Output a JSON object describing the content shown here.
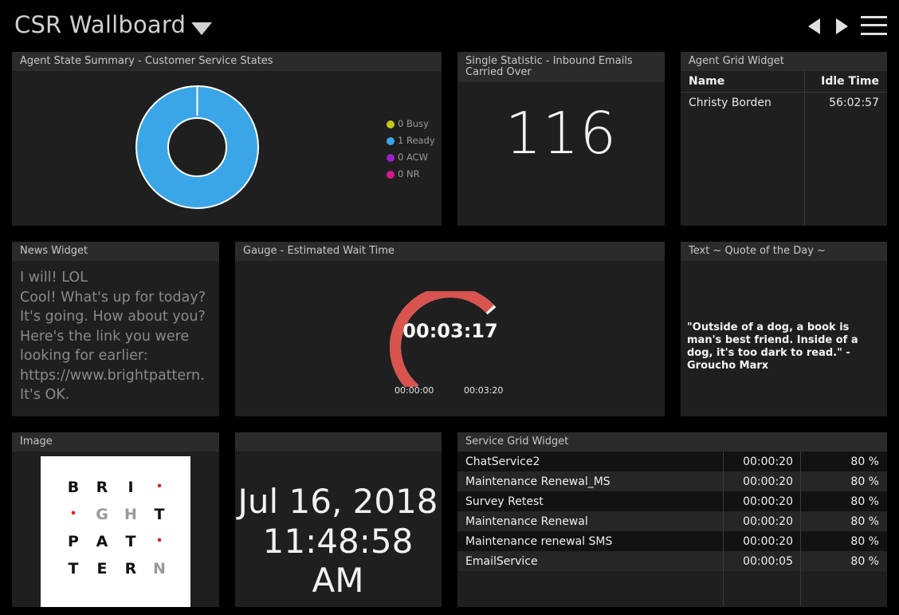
{
  "header": {
    "title": "CSR Wallboard"
  },
  "agent_state": {
    "title": "Agent State Summary - Customer Service States",
    "legend": [
      {
        "label": "0 Busy",
        "color": "#c6c61a"
      },
      {
        "label": "1 Ready",
        "color": "#3aa6e8"
      },
      {
        "label": "0 ACW",
        "color": "#9a1fc9"
      },
      {
        "label": "0 NR",
        "color": "#d6178f"
      }
    ],
    "donut_values": {
      "Busy": 0,
      "Ready": 1,
      "ACW": 0,
      "NR": 0
    }
  },
  "single_stat": {
    "title": "Single Statistic - Inbound Emails Carried Over",
    "value": "116"
  },
  "agent_grid": {
    "title": "Agent Grid Widget",
    "col_name": "Name",
    "col_idle": "Idle Time",
    "rows": [
      {
        "name": "Christy Borden",
        "idle": "56:02:57"
      }
    ]
  },
  "news": {
    "title": "News Widget",
    "lines": [
      "I will! LOL",
      "Cool! What's up for today?",
      "It's going. How about you?",
      "Here's the link you were",
      "looking for earlier:",
      "https://www.brightpattern.",
      "It's OK."
    ]
  },
  "gauge": {
    "title": "Gauge - Estimated Wait Time",
    "value": "00:03:17",
    "min": "00:00:00",
    "max": "00:03:20",
    "fraction": 0.985,
    "color": "#d9534f"
  },
  "quote": {
    "title": "Text ~ Quote of the Day ~",
    "text": "\"Outside of a dog, a book is man's best friend. Inside of a dog, it's too dark to read.\" - Groucho Marx"
  },
  "image_widget": {
    "title": "Image",
    "logo_rows": [
      [
        "B",
        "R",
        "I",
        "•"
      ],
      [
        "•",
        "G",
        "H",
        "T"
      ],
      [
        "P",
        "A",
        "T",
        "•"
      ],
      [
        "T",
        "E",
        "R",
        "N"
      ]
    ]
  },
  "clock": {
    "date": "Jul 16, 2018",
    "time": "11:48:58 AM"
  },
  "service_grid": {
    "title": "Service Grid Widget",
    "rows": [
      {
        "name": "ChatService2",
        "time": "00:00:20",
        "pct": "80 %"
      },
      {
        "name": "Maintenance Renewal_MS",
        "time": "00:00:20",
        "pct": "80 %"
      },
      {
        "name": "Survey Retest",
        "time": "00:00:20",
        "pct": "80 %"
      },
      {
        "name": "Maintenance Renewal",
        "time": "00:00:20",
        "pct": "80 %"
      },
      {
        "name": "Maintenance renewal SMS",
        "time": "00:00:20",
        "pct": "80 %"
      },
      {
        "name": "EmailService",
        "time": "00:00:05",
        "pct": "80 %"
      }
    ]
  }
}
